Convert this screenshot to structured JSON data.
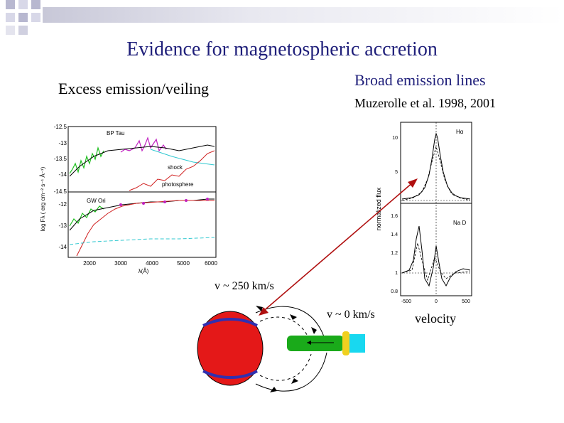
{
  "slide": {
    "title": "Evidence for magnetospheric accretion",
    "left_heading": "Excess emission/veiling",
    "right_heading": "Broad emission lines",
    "citation": "Muzerolle et al. 1998, 2001",
    "label_v250": "v ~ 250 km/s",
    "label_v0": "v ~ 0 km/s",
    "label_velocity": "velocity"
  },
  "spectra_plot": {
    "yticks_top": [
      "-12.5",
      "-13",
      "-13.5",
      "-14",
      "-14.5"
    ],
    "yticks_bottom": [
      "-12",
      "-13",
      "-14"
    ],
    "xticks": [
      "2000",
      "3000",
      "4000",
      "5000",
      "6000"
    ],
    "xlabel": "λ(Å)",
    "ylabel": "log Fλ ( erg cm⁻² s⁻¹ Å⁻¹)",
    "star_top": "BP Tau",
    "star_bottom": "GW Ori",
    "label_shock": "shock",
    "label_photosphere": "photosphere"
  },
  "line_profile_plot": {
    "yticks_top": [
      "10",
      "5"
    ],
    "yticks_bottom": [
      "1.6",
      "1.4",
      "1.2",
      "1",
      "0.8"
    ],
    "xticks": [
      "-500",
      "0",
      "500"
    ],
    "ylabel": "normalized flux",
    "label_top": "Hα",
    "label_bottom": "Na D"
  },
  "colors": {
    "title": "#1f1f7a",
    "star_fill": "#e41818",
    "band": "#3030b0",
    "arrow": "#b01010",
    "disk_green": "#1aaa1a",
    "disk_yellow": "#f0d020",
    "disk_cyan": "#18d8f0"
  }
}
